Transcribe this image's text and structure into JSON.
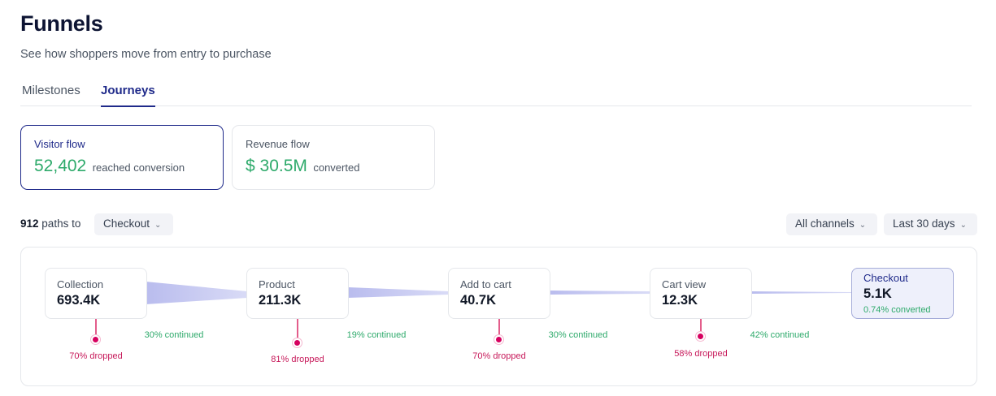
{
  "header": {
    "title": "Funnels",
    "subtitle": "See how shoppers move from entry to purchase"
  },
  "tabs": [
    {
      "label": "Milestones",
      "active": false
    },
    {
      "label": "Journeys",
      "active": true
    }
  ],
  "metrics": [
    {
      "label": "Visitor flow",
      "value": "52,402",
      "suffix": "reached conversion",
      "active": true
    },
    {
      "label": "Revenue flow",
      "value": "$ 30.5M",
      "suffix": "converted",
      "active": false
    }
  ],
  "filters": {
    "paths_count": "912",
    "paths_text": "paths to",
    "step_select": "Checkout",
    "channel_select": "All channels",
    "range_select": "Last 30 days"
  },
  "steps": [
    {
      "name": "Collection",
      "value": "693.4K",
      "dropped": "70% dropped"
    },
    {
      "name": "Product",
      "value": "211.3K",
      "dropped": "81% dropped"
    },
    {
      "name": "Add to cart",
      "value": "40.7K",
      "dropped": "70% dropped"
    },
    {
      "name": "Cart view",
      "value": "12.3K",
      "dropped": "58% dropped"
    },
    {
      "name": "Checkout",
      "value": "5.1K",
      "converted": "0.74% converted"
    }
  ],
  "continued": [
    "30% continued",
    "19% continued",
    "30% continued",
    "42% continued"
  ],
  "colors": {
    "accent": "#1f2a8a",
    "positive": "#2eaa6b",
    "dropped": "#d6005f",
    "ribbon": "#c9cbf0"
  },
  "icons": {
    "dropdown": "chevron-down-icon"
  }
}
